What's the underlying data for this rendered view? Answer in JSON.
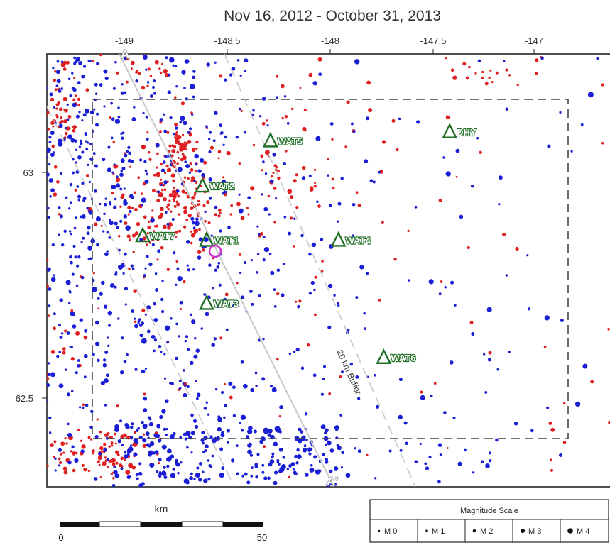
{
  "title": "Nov 16, 2012 - October 31, 2013",
  "axes": {
    "lon_ticks": [
      "-149",
      "-148.5",
      "-148",
      "-147.5",
      "-147"
    ],
    "lat_ticks": [
      "63",
      "62.5"
    ]
  },
  "stations": [
    {
      "name": "WAT5",
      "lon": -148.29,
      "lat": 63.07
    },
    {
      "name": "DHY",
      "lon": -147.42,
      "lat": 63.09
    },
    {
      "name": "WAT2",
      "lon": -148.62,
      "lat": 62.97
    },
    {
      "name": "WAT7",
      "lon": -148.91,
      "lat": 62.86
    },
    {
      "name": "WAT1",
      "lon": -148.6,
      "lat": 62.85
    },
    {
      "name": "WAT4",
      "lon": -147.96,
      "lat": 62.85
    },
    {
      "name": "WAT3",
      "lon": -148.6,
      "lat": 62.71
    },
    {
      "name": "WAT6",
      "lon": -147.74,
      "lat": 62.59
    }
  ],
  "profile": {
    "start_label": "A",
    "end_label": "A'"
  },
  "buffer_label": "20 km Buffer",
  "scale_bar": {
    "unit": "km",
    "min": "0",
    "max": "50"
  },
  "magnitude_scale": {
    "title": "Magnitude Scale",
    "items": [
      "M 0",
      "M 1",
      "M 2",
      "M 3",
      "M 4"
    ]
  },
  "colors": {
    "event_blue": "#1a1fd6",
    "event_red": "#e02020",
    "station_green": "#1f6f25",
    "highlight_circle": "#cc33cc",
    "study_box": "#444444",
    "profile_line": "#c8c8c8",
    "buffer_line": "#c8c8c8"
  }
}
